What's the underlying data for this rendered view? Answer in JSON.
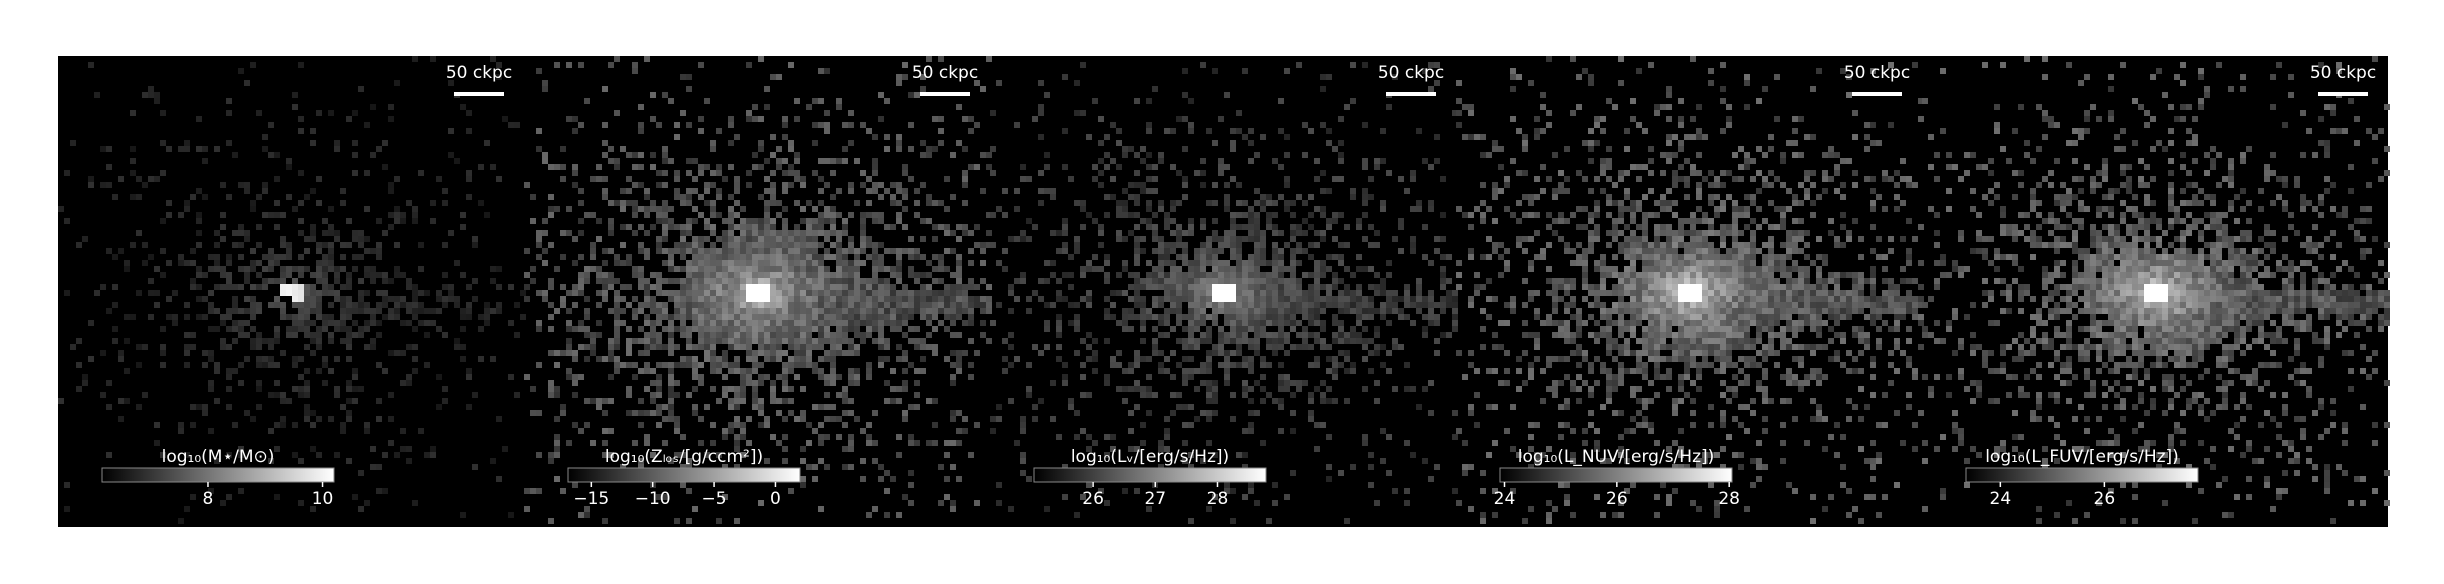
{
  "panels": [
    {
      "scalebar": "50 ckpc",
      "colorbar_label": "log₁₀(M⋆/M⊙)",
      "colorbar_lim": [
        6.15,
        10.2
      ],
      "colorbar_ticks": [
        8,
        10
      ]
    },
    {
      "scalebar": "50 ckpc",
      "colorbar_label": "log₁₀(Zₗₒₛ/[g/ccm²])",
      "colorbar_lim": [
        -16.9,
        2.0
      ],
      "colorbar_ticks": [
        {
          "value": -15,
          "label": "−15"
        },
        {
          "value": -10,
          "label": "−10"
        },
        {
          "value": -5,
          "label": "−5"
        },
        0
      ]
    },
    {
      "scalebar": "50 ckpc",
      "colorbar_label": "log₁₀(Lᵥ/[erg/s/Hz])",
      "colorbar_lim": [
        25.05,
        28.78
      ],
      "colorbar_ticks": [
        26,
        27,
        28
      ]
    },
    {
      "scalebar": "50 ckpc",
      "colorbar_label": "log₁₀(L_NUV/[erg/s/Hz])",
      "colorbar_lim": [
        23.92,
        28.05
      ],
      "colorbar_ticks": [
        24,
        26,
        28
      ]
    },
    {
      "scalebar": "50 ckpc",
      "colorbar_label": "log₁₀(L_FUV/[erg/s/Hz])",
      "colorbar_lim": [
        23.34,
        27.8
      ],
      "colorbar_ticks": [
        24,
        26
      ]
    }
  ]
}
